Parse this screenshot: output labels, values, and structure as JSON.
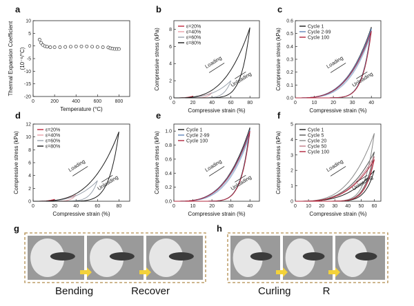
{
  "panels": [
    {
      "id": "a",
      "label": "a",
      "type": "scatter",
      "ylabel": "Thermal Expansion Coefficient",
      "ylabel2": "(10⁻⁶/°C)",
      "xlabel": "Temperature (°C)",
      "xlim": [
        0,
        900
      ],
      "ylim": [
        -20,
        10
      ],
      "xticks": [
        0,
        200,
        400,
        600,
        800
      ],
      "yticks": [
        -20,
        -15,
        -10,
        -5,
        0,
        5,
        10
      ],
      "points": [
        [
          60,
          2.5
        ],
        [
          75,
          1.2
        ],
        [
          90,
          0.4
        ],
        [
          110,
          -0.1
        ],
        [
          130,
          -0.3
        ],
        [
          160,
          -0.5
        ],
        [
          200,
          -0.5
        ],
        [
          250,
          -0.5
        ],
        [
          300,
          -0.4
        ],
        [
          350,
          -0.3
        ],
        [
          400,
          -0.2
        ],
        [
          450,
          -0.2
        ],
        [
          500,
          -0.2
        ],
        [
          550,
          -0.3
        ],
        [
          600,
          -0.4
        ],
        [
          650,
          -0.5
        ],
        [
          700,
          -0.6
        ],
        [
          720,
          -0.9
        ],
        [
          740,
          -1.1
        ],
        [
          760,
          -1.2
        ],
        [
          780,
          -1.2
        ],
        [
          800,
          -1.2
        ]
      ]
    },
    {
      "id": "b",
      "label": "b",
      "type": "line",
      "ylabel": "Compressive stress (kPa)",
      "xlabel": "Compressive strain (%)",
      "xlim": [
        0,
        90
      ],
      "ylim": [
        0,
        9
      ],
      "xticks": [
        0,
        20,
        40,
        60,
        80
      ],
      "yticks": [
        0,
        2,
        4,
        6,
        8
      ],
      "legend": [
        "ε=20%",
        "ε=40%",
        "ε=60%",
        "ε=80%"
      ],
      "annotations": [
        "Loading",
        "Unloading"
      ],
      "series": [
        {
          "name": "ε=20%",
          "color": "#c0243b",
          "max_strain": 20,
          "max_stress": 0.2
        },
        {
          "name": "ε=40%",
          "color": "#e9a0a8",
          "max_strain": 40,
          "max_stress": 0.6
        },
        {
          "name": "ε=60%",
          "color": "#9aa3ae",
          "max_strain": 60,
          "max_stress": 2.0
        },
        {
          "name": "ε=80%",
          "color": "#1a1a1a",
          "max_strain": 80,
          "max_stress": 8.2
        }
      ]
    },
    {
      "id": "c",
      "label": "c",
      "type": "line",
      "ylabel": "Compressive stress (kPa)",
      "xlabel": "Compressive strain (%)",
      "xlim": [
        0,
        45
      ],
      "ylim": [
        0,
        0.6
      ],
      "xticks": [
        0,
        10,
        20,
        30,
        40
      ],
      "yticks": [
        0.0,
        0.1,
        0.2,
        0.3,
        0.4,
        0.5,
        0.6
      ],
      "legend": [
        "Cycle 1",
        "Cycle 2-99",
        "Cycle 100"
      ],
      "annotations": [
        "Loading",
        "Unloading"
      ],
      "series": [
        {
          "name": "Cycle 1",
          "color": "#1a1a1a",
          "max_strain": 40,
          "max_stress": 0.55
        },
        {
          "name": "Cycle 2-99",
          "color": "#5f84b8",
          "max_strain": 40,
          "max_stress": 0.54
        },
        {
          "name": "Cycle 100",
          "color": "#b0243a",
          "max_strain": 40,
          "max_stress": 0.52
        }
      ]
    },
    {
      "id": "d",
      "label": "d",
      "type": "line",
      "ylabel": "Compressive stress (kPa)",
      "xlabel": "Compressive strain (%)",
      "xlim": [
        0,
        90
      ],
      "ylim": [
        0,
        12
      ],
      "xticks": [
        0,
        20,
        40,
        60,
        80
      ],
      "yticks": [
        0,
        2,
        4,
        6,
        8,
        10,
        12
      ],
      "legend": [
        "ε=20%",
        "ε=40%",
        "ε=60%",
        "ε=80%"
      ],
      "annotations": [
        "Loading",
        "Unloading"
      ],
      "series": [
        {
          "name": "ε=20%",
          "color": "#c0243b",
          "max_strain": 20,
          "max_stress": 0.3
        },
        {
          "name": "ε=40%",
          "color": "#e9a0a8",
          "max_strain": 40,
          "max_stress": 1.0
        },
        {
          "name": "ε=60%",
          "color": "#9aa3ae",
          "max_strain": 60,
          "max_stress": 3.2
        },
        {
          "name": "ε=80%",
          "color": "#1a1a1a",
          "max_strain": 80,
          "max_stress": 10.8
        }
      ]
    },
    {
      "id": "e",
      "label": "e",
      "type": "line",
      "ylabel": "Compressive stress (kPa)",
      "xlabel": "Compressive strain (%)",
      "xlim": [
        0,
        45
      ],
      "ylim": [
        0,
        1.1
      ],
      "xticks": [
        0,
        10,
        20,
        30,
        40
      ],
      "yticks": [
        0.0,
        0.2,
        0.4,
        0.6,
        0.8,
        1.0
      ],
      "legend": [
        "Cycle 1",
        "Cycle 2-99",
        "Cycle 100"
      ],
      "annotations": [
        "Loading",
        "Unloading"
      ],
      "series": [
        {
          "name": "Cycle 1",
          "color": "#1a1a1a",
          "max_strain": 40,
          "max_stress": 1.05
        },
        {
          "name": "Cycle 2-99",
          "color": "#5f84b8",
          "max_strain": 40,
          "max_stress": 1.02
        },
        {
          "name": "Cycle 100",
          "color": "#b0243a",
          "max_strain": 40,
          "max_stress": 1.0
        }
      ]
    },
    {
      "id": "f",
      "label": "f",
      "type": "line",
      "ylabel": "Compressive stress (kPa)",
      "xlabel": "Compressive strain (%)",
      "xlim": [
        0,
        65
      ],
      "ylim": [
        0,
        5
      ],
      "xticks": [
        0,
        10,
        20,
        30,
        40,
        50,
        60
      ],
      "yticks": [
        0,
        1,
        2,
        3,
        4,
        5
      ],
      "legend": [
        "Cycle 1",
        "Cycle 5",
        "Cycle 20",
        "Cycle 50",
        "Cycle 100"
      ],
      "annotations": [
        "Loading",
        "Unloading"
      ],
      "series": [
        {
          "name": "Cycle 1",
          "color": "#1a1a1a",
          "max_strain": 60,
          "max_stress": 2.0
        },
        {
          "name": "Cycle 5",
          "color": "#555555",
          "max_strain": 60,
          "max_stress": 3.2
        },
        {
          "name": "Cycle 20",
          "color": "#888888",
          "max_strain": 60,
          "max_stress": 4.4
        },
        {
          "name": "Cycle 50",
          "color": "#c07a86",
          "max_strain": 60,
          "max_stress": 2.9
        },
        {
          "name": "Cycle 100",
          "color": "#b0243a",
          "max_strain": 60,
          "max_stress": 2.7
        }
      ]
    }
  ],
  "photos": {
    "g": {
      "label": "g",
      "captions": [
        "Bending",
        "Recover"
      ]
    },
    "h": {
      "label": "h",
      "captions": [
        "Curling",
        "R"
      ]
    }
  },
  "colors": {
    "arrow": "#f3d23a",
    "border": "#b08a4a",
    "bg_photo": "#9a9a9a"
  }
}
